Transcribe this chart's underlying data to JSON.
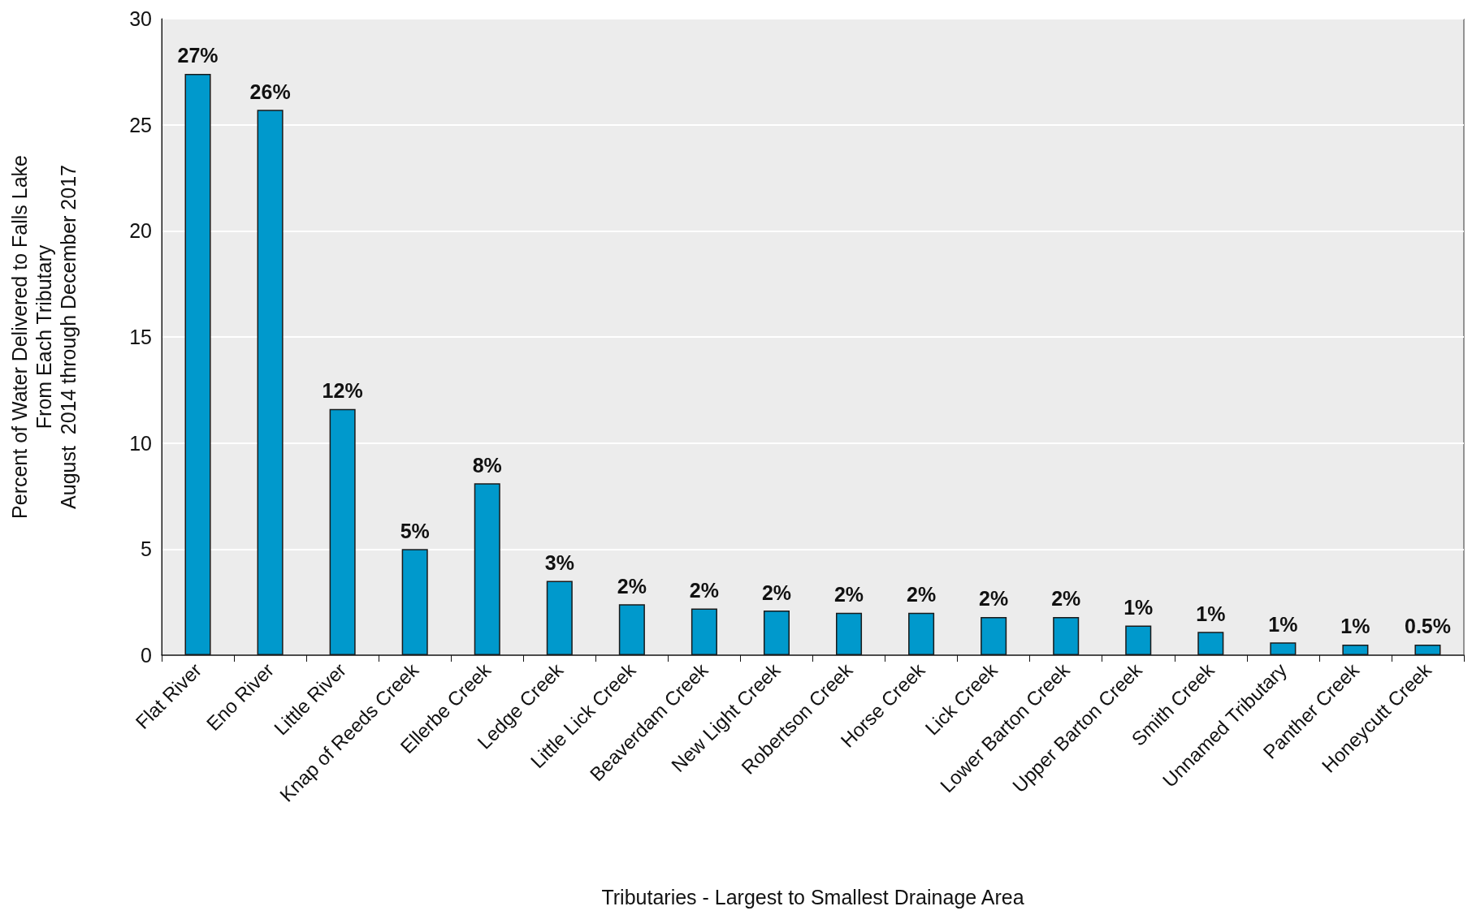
{
  "chart_data": {
    "type": "bar",
    "xlabel": "Tributaries - Largest to Smallest Drainage Area",
    "ylabel": "Percent of Water Delivered to Falls Lake\nFrom Each Tributary\nAugust  2014 through December 2017",
    "categories": [
      "Flat River",
      "Eno River",
      "Little River",
      "Knap of Reeds Creek",
      "Ellerbe Creek",
      "Ledge Creek",
      "Little Lick Creek",
      "Beaverdam Creek",
      "New Light Creek",
      "Robertson Creek",
      "Horse Creek",
      "Lick Creek",
      "Lower Barton Creek",
      "Upper Barton Creek",
      "Smith Creek",
      "Unnamed Tributary",
      "Panther Creek",
      "Honeycutt Creek"
    ],
    "values": [
      27.4,
      25.7,
      11.6,
      5.0,
      8.1,
      3.5,
      2.4,
      2.2,
      2.1,
      2.0,
      2.0,
      1.8,
      1.8,
      1.4,
      1.1,
      0.6,
      0.5,
      0.5
    ],
    "value_labels": [
      "27%",
      "26%",
      "12%",
      "5%",
      "8%",
      "3%",
      "2%",
      "2%",
      "2%",
      "2%",
      "2%",
      "2%",
      "2%",
      "1%",
      "1%",
      "1%",
      "1%",
      "0.5%"
    ],
    "color": "#0099cc",
    "ylim": [
      0,
      30
    ],
    "yticks": [
      0,
      5,
      10,
      15,
      20,
      25,
      30
    ],
    "grid": "y"
  }
}
